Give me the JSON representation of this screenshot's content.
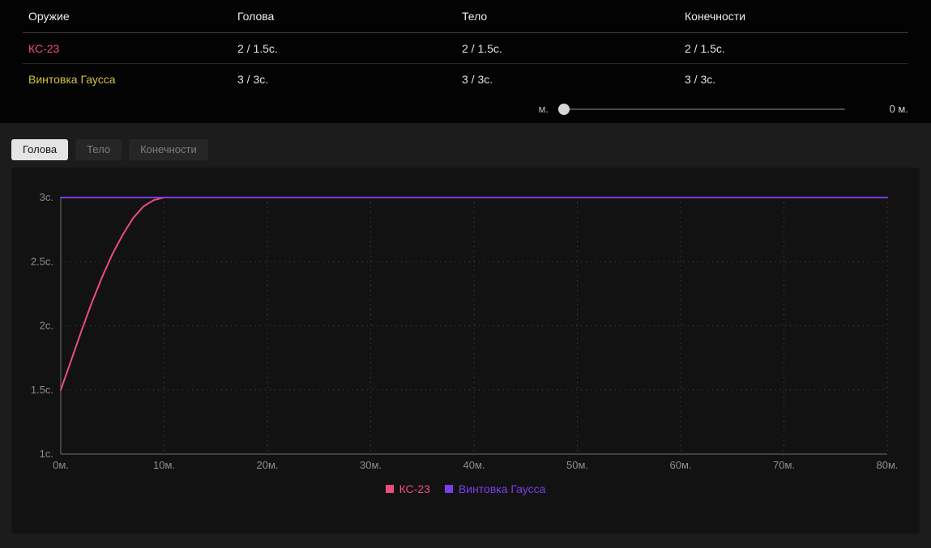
{
  "table": {
    "headers": [
      "Оружие",
      "Голова",
      "Тело",
      "Конечности"
    ],
    "rows": [
      {
        "name": "КС-23",
        "name_color": "#ee4c7c",
        "values": [
          "2 / 1.5с.",
          "2 / 1.5с.",
          "2 / 1.5с."
        ]
      },
      {
        "name": "Винтовка Гаусса",
        "name_color": "#cfc244",
        "values": [
          "3 / 3с.",
          "3 / 3с.",
          "3 / 3с."
        ]
      }
    ]
  },
  "slider": {
    "label": "м.",
    "value": "0 м."
  },
  "tabs": {
    "items": [
      {
        "label": "Голова",
        "active": true
      },
      {
        "label": "Тело",
        "active": false
      },
      {
        "label": "Конечности",
        "active": false
      }
    ]
  },
  "chart_data": {
    "type": "line",
    "title": "",
    "xlabel": "",
    "ylabel": "",
    "xlim": [
      0,
      80
    ],
    "ylim": [
      1,
      3
    ],
    "grid": true,
    "legend_position": "bottom",
    "x_ticks": [
      0,
      10,
      20,
      30,
      40,
      50,
      60,
      70,
      80
    ],
    "x_tick_labels": [
      "0м.",
      "10м.",
      "20м.",
      "30м.",
      "40м.",
      "50м.",
      "60м.",
      "70м.",
      "80м."
    ],
    "y_ticks": [
      1,
      1.5,
      2,
      2.5,
      3
    ],
    "y_tick_labels": [
      "1с.",
      "1.5с.",
      "2с.",
      "2.5с.",
      "3с."
    ],
    "series": [
      {
        "name": "КС-23",
        "color": "#ee4c7c",
        "points": [
          [
            0,
            1.5
          ],
          [
            1,
            1.73
          ],
          [
            2,
            1.96
          ],
          [
            3,
            2.18
          ],
          [
            4,
            2.38
          ],
          [
            5,
            2.56
          ],
          [
            6,
            2.71
          ],
          [
            7,
            2.84
          ],
          [
            8,
            2.93
          ],
          [
            9,
            2.98
          ],
          [
            10,
            3
          ],
          [
            20,
            3
          ],
          [
            30,
            3
          ],
          [
            40,
            3
          ],
          [
            50,
            3
          ],
          [
            60,
            3
          ],
          [
            70,
            3
          ],
          [
            80,
            3
          ]
        ]
      },
      {
        "name": "Винтовка Гаусса",
        "color": "#7b3df0",
        "points": [
          [
            0,
            3
          ],
          [
            80,
            3
          ]
        ]
      }
    ]
  }
}
